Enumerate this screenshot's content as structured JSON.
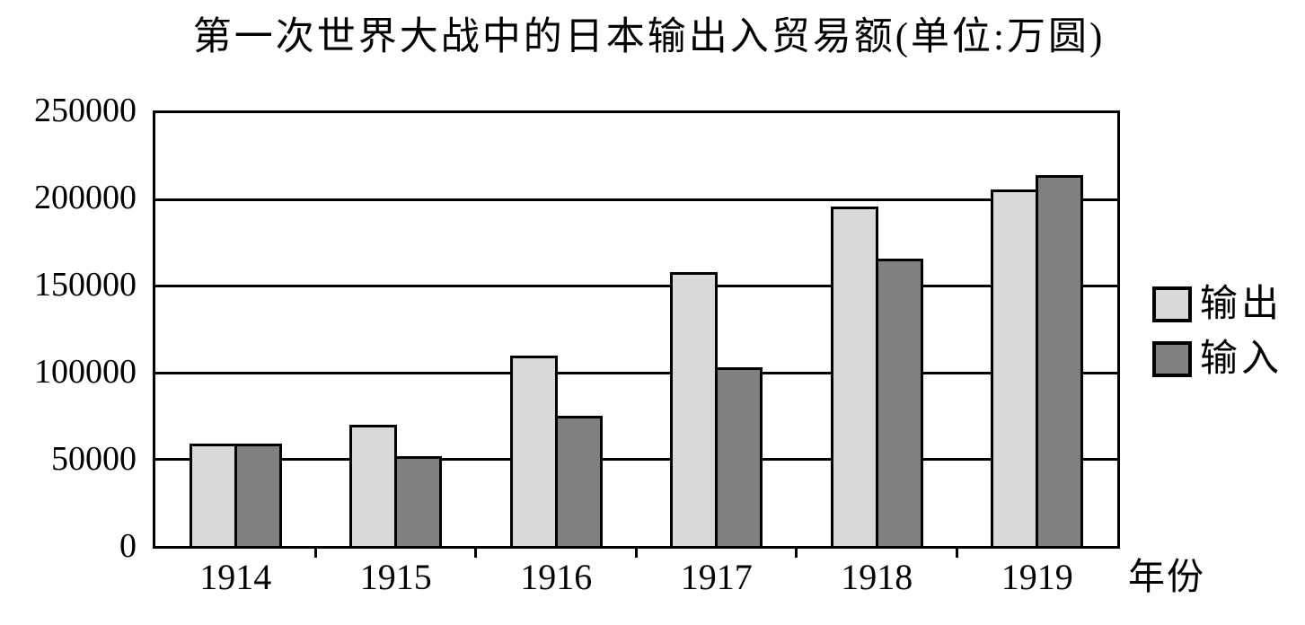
{
  "chart_data": {
    "type": "bar",
    "title": "第一次世界大战中的日本输出入贸易额(单位:万圆)",
    "categories": [
      "1914",
      "1915",
      "1916",
      "1917",
      "1918",
      "1919"
    ],
    "series": [
      {
        "id": "export",
        "name": "输出",
        "color": "#d9d9d9",
        "values": [
          59000,
          70000,
          110000,
          158000,
          196000,
          206000
        ]
      },
      {
        "id": "import",
        "name": "输入",
        "color": "#808080",
        "values": [
          59000,
          52000,
          75000,
          103000,
          166000,
          214000
        ]
      }
    ],
    "xlabel": "年份",
    "ylabel": "",
    "ylim": [
      0,
      250000
    ],
    "ytick_interval": 50000,
    "yticks": [
      "250000",
      "200000",
      "150000",
      "100000",
      "50000",
      "0"
    ],
    "grid": true,
    "legend_position": "right",
    "colors": {
      "outline": "#000000",
      "background": "#ffffff",
      "text": "#000000"
    }
  }
}
